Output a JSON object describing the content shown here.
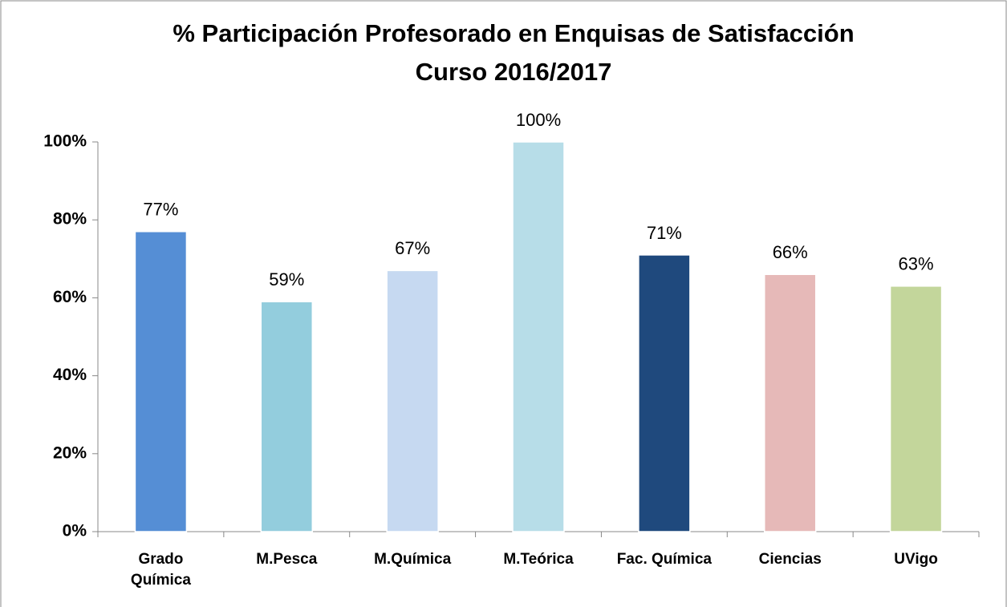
{
  "chart_data": {
    "type": "bar",
    "title": "% Participación Profesorado en Enquisas de Satisfacción",
    "subtitle": "Curso 2016/2017",
    "categories": [
      "Grado\nQuímica",
      "M.Pesca",
      "M.Química",
      "M.Teórica",
      "Fac. Química",
      "Ciencias",
      "UVigo"
    ],
    "values": [
      77,
      59,
      67,
      100,
      71,
      66,
      63
    ],
    "value_labels": [
      "77%",
      "59%",
      "67%",
      "100%",
      "71%",
      "66%",
      "63%"
    ],
    "colors": [
      "#558ed5",
      "#93cddd",
      "#c6d9f1",
      "#b7dde8",
      "#1f497d",
      "#e6b9b8",
      "#c3d69b"
    ],
    "ylim": [
      0,
      100
    ],
    "yticks": [
      {
        "value": 0,
        "label": "0%"
      },
      {
        "value": 20,
        "label": "20%"
      },
      {
        "value": 40,
        "label": "40%"
      },
      {
        "value": 60,
        "label": "60%"
      },
      {
        "value": 80,
        "label": "80%"
      },
      {
        "value": 100,
        "label": "100%"
      }
    ],
    "grid": false
  }
}
